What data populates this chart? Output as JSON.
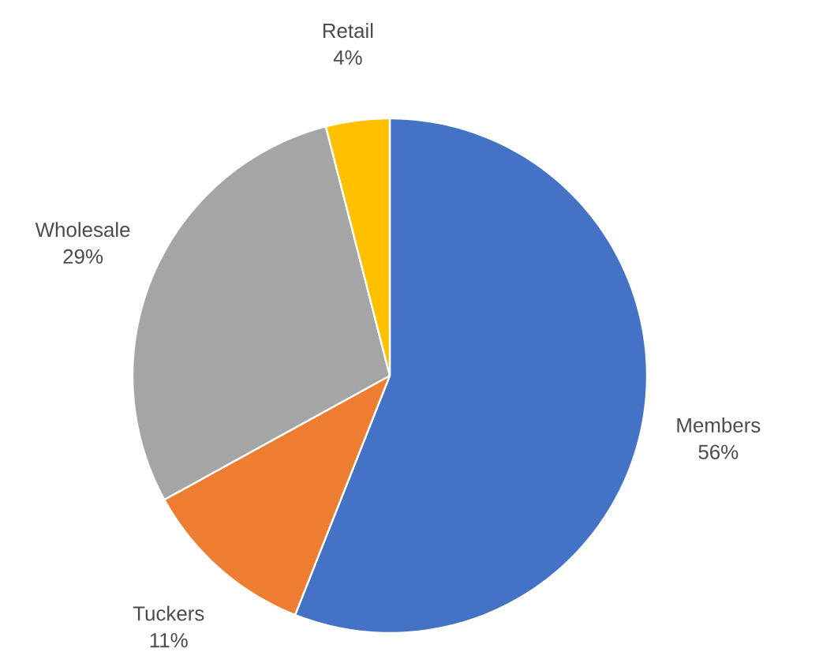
{
  "chart_data": {
    "type": "pie",
    "categories": [
      "Members",
      "Tuckers",
      "Wholesale",
      "Retail"
    ],
    "values": [
      56,
      11,
      29,
      4
    ],
    "value_labels": [
      "56%",
      "11%",
      "29%",
      "4%"
    ],
    "colors": [
      "#4472c4",
      "#ed7d31",
      "#a5a5a5",
      "#ffc000"
    ]
  }
}
